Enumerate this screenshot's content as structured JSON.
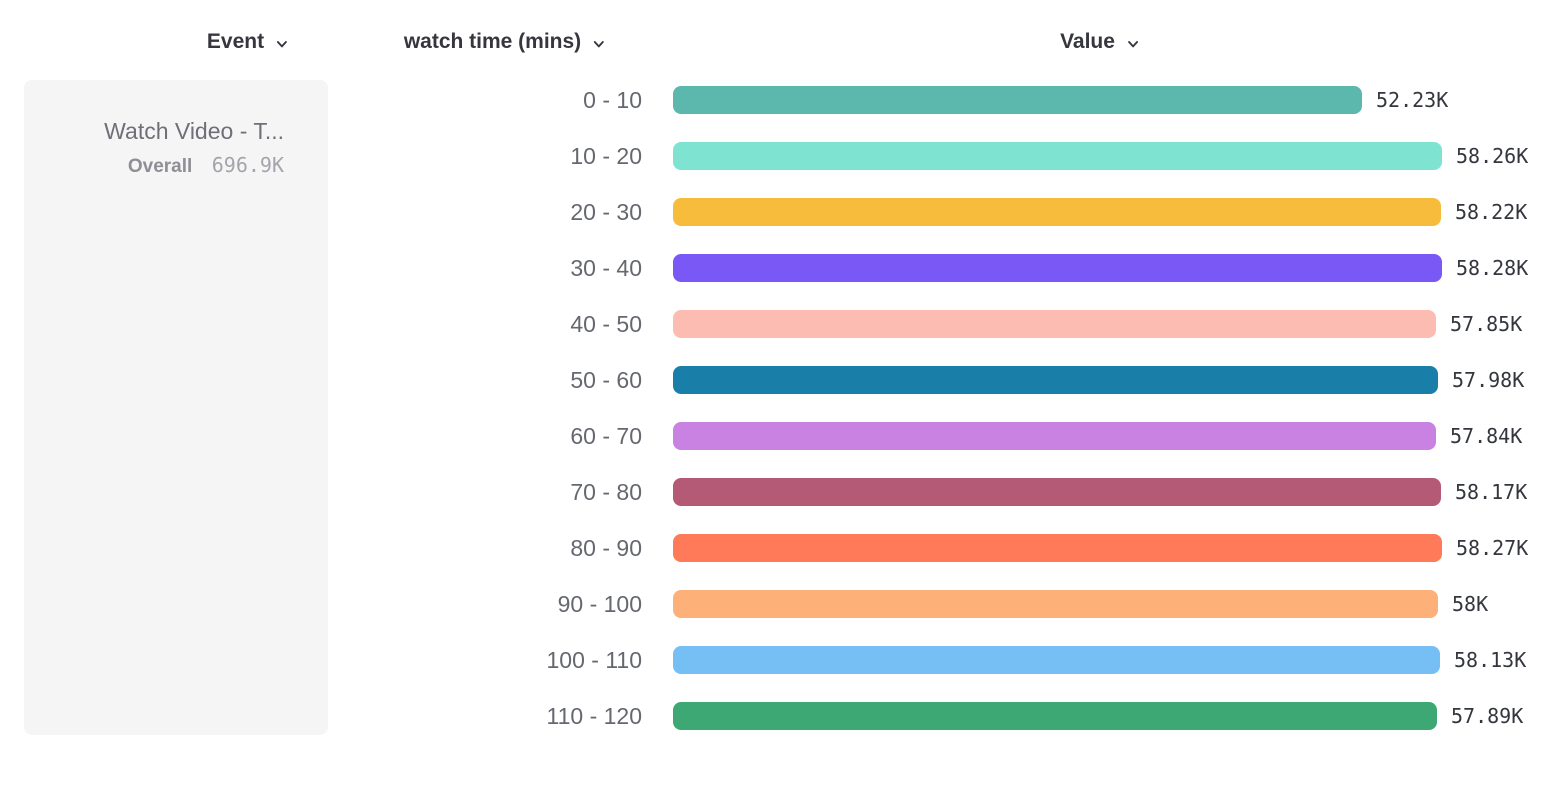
{
  "header": {
    "event_label": "Event",
    "dimension_label": "watch time (mins)",
    "value_label": "Value"
  },
  "event_card": {
    "title": "Watch Video - T...",
    "overall_label": "Overall",
    "overall_value": "696.9K"
  },
  "chart_data": {
    "type": "bar",
    "orientation": "horizontal",
    "title": "",
    "xlabel": "watch time (mins)",
    "ylabel": "Value",
    "grid": false,
    "legend_position": "none",
    "xlim": [
      0,
      58280
    ],
    "categories": [
      "0 - 10",
      "10 - 20",
      "20 - 30",
      "30 - 40",
      "40 - 50",
      "50 - 60",
      "60 - 70",
      "70 - 80",
      "80 - 90",
      "90 - 100",
      "100 - 110",
      "110 - 120"
    ],
    "values": [
      52230,
      58260,
      58220,
      58280,
      57850,
      57980,
      57840,
      58170,
      58270,
      58000,
      58130,
      57890
    ],
    "value_labels": [
      "52.23K",
      "58.26K",
      "58.22K",
      "58.28K",
      "57.85K",
      "57.98K",
      "57.84K",
      "58.17K",
      "58.27K",
      "58K",
      "58.13K",
      "57.89K"
    ],
    "colors": [
      "#5cb7ad",
      "#7fe3d2",
      "#f8bc3c",
      "#7a58f6",
      "#fdbcb2",
      "#1a7fa8",
      "#c982e2",
      "#b55a76",
      "#ff7a59",
      "#fdb077",
      "#76bff5",
      "#3da873"
    ]
  },
  "layout_colors": {
    "card_bg": "#f5f5f6",
    "header_text": "#36363f",
    "bucket_label_text": "#65686f",
    "value_label_text": "#33363d"
  }
}
